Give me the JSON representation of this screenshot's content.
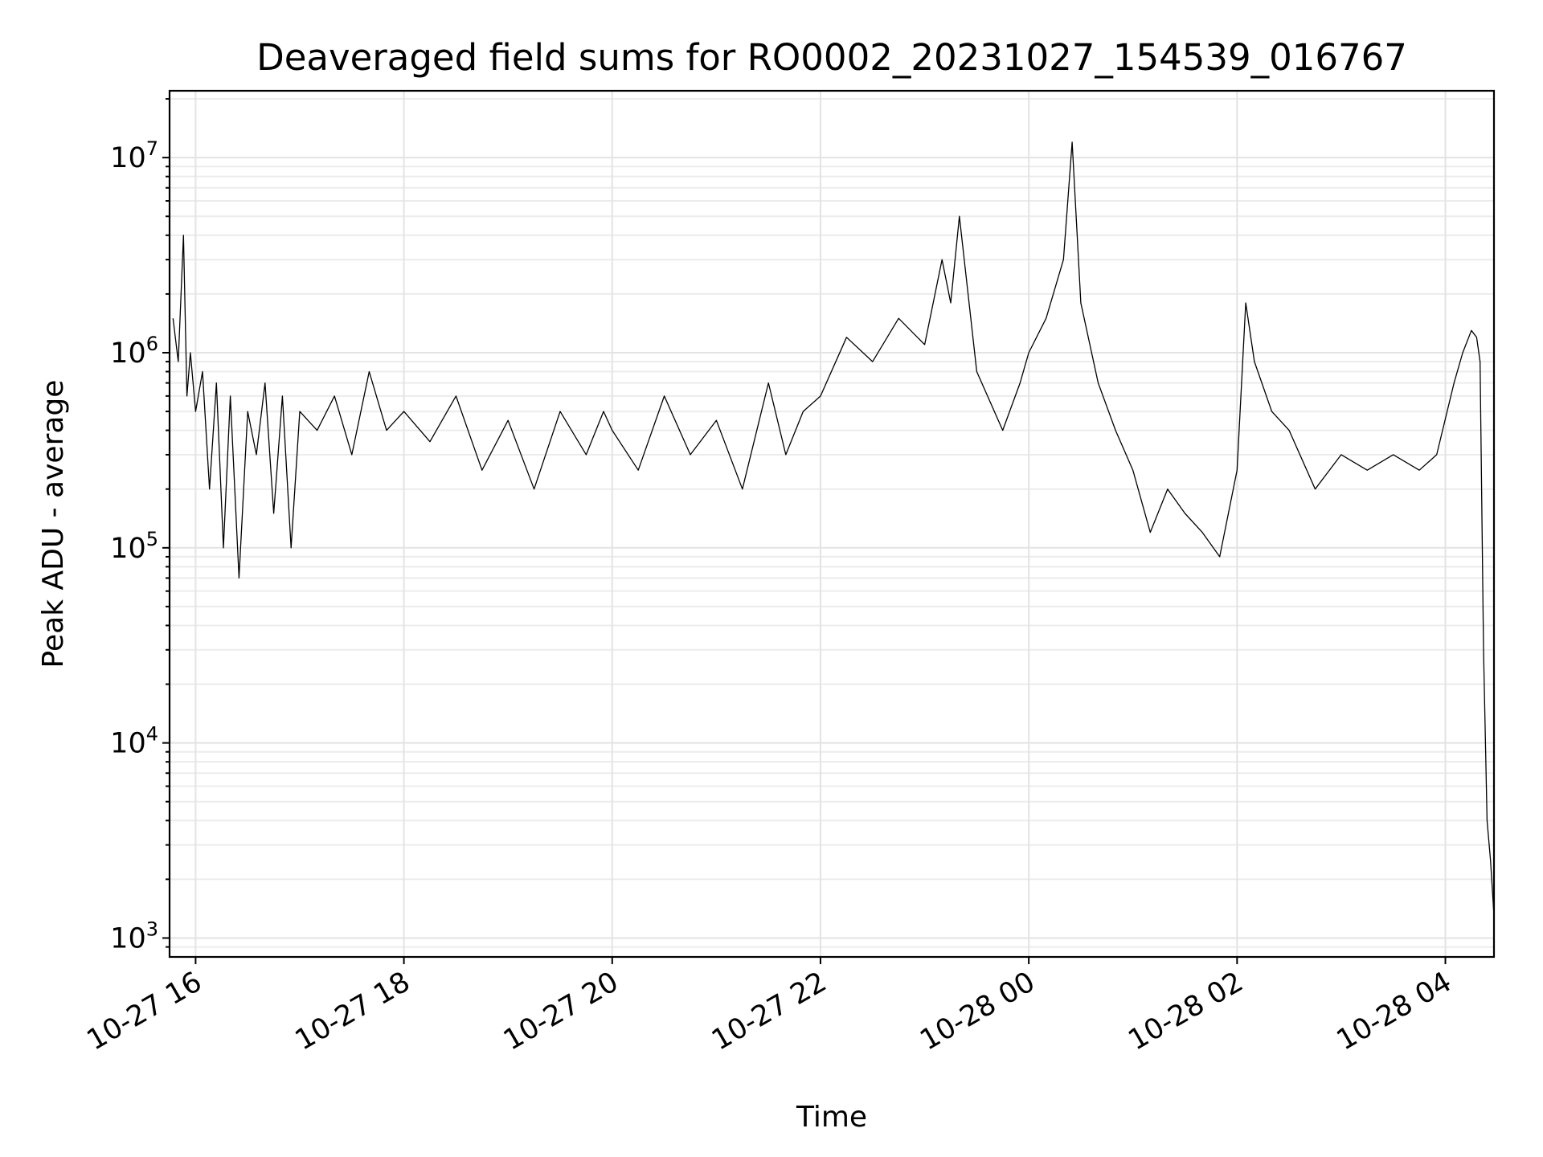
{
  "chart_data": {
    "type": "line",
    "title": "Deaveraged field sums for RO0002_20231027_154539_016767",
    "xlabel": "Time",
    "ylabel": "Peak ADU - average",
    "yscale": "log",
    "ylim": [
      800,
      22000000
    ],
    "xlim": [
      "2023-10-27 15:45",
      "2023-10-28 04:28"
    ],
    "grid": true,
    "x_ticks": [
      {
        "t": "2023-10-27 16:00",
        "label": "10-27 16"
      },
      {
        "t": "2023-10-27 18:00",
        "label": "10-27 18"
      },
      {
        "t": "2023-10-27 20:00",
        "label": "10-27 20"
      },
      {
        "t": "2023-10-27 22:00",
        "label": "10-27 22"
      },
      {
        "t": "2023-10-28 00:00",
        "label": "10-28 00"
      },
      {
        "t": "2023-10-28 02:00",
        "label": "10-28 02"
      },
      {
        "t": "2023-10-28 04:00",
        "label": "10-28 04"
      }
    ],
    "y_ticks": [
      {
        "value": 1000,
        "base": "10",
        "exp": "3"
      },
      {
        "value": 10000,
        "base": "10",
        "exp": "4"
      },
      {
        "value": 100000,
        "base": "10",
        "exp": "5"
      },
      {
        "value": 1000000,
        "base": "10",
        "exp": "6"
      },
      {
        "value": 10000000,
        "base": "10",
        "exp": "7"
      }
    ],
    "series": [
      {
        "color": "#000000",
        "x": [
          "2023-10-27 15:47",
          "2023-10-27 15:50",
          "2023-10-27 15:53",
          "2023-10-27 15:55",
          "2023-10-27 15:57",
          "2023-10-27 16:00",
          "2023-10-27 16:04",
          "2023-10-27 16:08",
          "2023-10-27 16:12",
          "2023-10-27 16:16",
          "2023-10-27 16:20",
          "2023-10-27 16:25",
          "2023-10-27 16:30",
          "2023-10-27 16:35",
          "2023-10-27 16:40",
          "2023-10-27 16:45",
          "2023-10-27 16:50",
          "2023-10-27 16:55",
          "2023-10-27 17:00",
          "2023-10-27 17:10",
          "2023-10-27 17:20",
          "2023-10-27 17:30",
          "2023-10-27 17:40",
          "2023-10-27 17:50",
          "2023-10-27 18:00",
          "2023-10-27 18:15",
          "2023-10-27 18:30",
          "2023-10-27 18:45",
          "2023-10-27 19:00",
          "2023-10-27 19:15",
          "2023-10-27 19:30",
          "2023-10-27 19:45",
          "2023-10-27 19:55",
          "2023-10-27 20:00",
          "2023-10-27 20:15",
          "2023-10-27 20:30",
          "2023-10-27 20:45",
          "2023-10-27 21:00",
          "2023-10-27 21:15",
          "2023-10-27 21:30",
          "2023-10-27 21:40",
          "2023-10-27 21:50",
          "2023-10-27 22:00",
          "2023-10-27 22:15",
          "2023-10-27 22:30",
          "2023-10-27 22:45",
          "2023-10-27 23:00",
          "2023-10-27 23:10",
          "2023-10-27 23:15",
          "2023-10-27 23:20",
          "2023-10-27 23:30",
          "2023-10-27 23:45",
          "2023-10-27 23:55",
          "2023-10-28 00:00",
          "2023-10-28 00:10",
          "2023-10-28 00:20",
          "2023-10-28 00:25",
          "2023-10-28 00:30",
          "2023-10-28 00:40",
          "2023-10-28 00:50",
          "2023-10-28 01:00",
          "2023-10-28 01:10",
          "2023-10-28 01:20",
          "2023-10-28 01:30",
          "2023-10-28 01:40",
          "2023-10-28 01:50",
          "2023-10-28 02:00",
          "2023-10-28 02:05",
          "2023-10-28 02:10",
          "2023-10-28 02:20",
          "2023-10-28 02:30",
          "2023-10-28 02:45",
          "2023-10-28 03:00",
          "2023-10-28 03:15",
          "2023-10-28 03:30",
          "2023-10-28 03:45",
          "2023-10-28 03:55",
          "2023-10-28 04:05",
          "2023-10-28 04:10",
          "2023-10-28 04:15",
          "2023-10-28 04:18",
          "2023-10-28 04:20",
          "2023-10-28 04:22",
          "2023-10-28 04:24",
          "2023-10-28 04:26",
          "2023-10-28 04:28"
        ],
        "y": [
          1500000,
          900000,
          4000000,
          600000,
          1000000,
          500000,
          800000,
          200000,
          700000,
          100000,
          600000,
          70000,
          500000,
          300000,
          700000,
          150000,
          600000,
          100000,
          500000,
          400000,
          600000,
          300000,
          800000,
          400000,
          500000,
          350000,
          600000,
          250000,
          450000,
          200000,
          500000,
          300000,
          500000,
          400000,
          250000,
          600000,
          300000,
          450000,
          200000,
          700000,
          300000,
          500000,
          600000,
          1200000,
          900000,
          1500000,
          1100000,
          3000000,
          1800000,
          5000000,
          800000,
          400000,
          700000,
          1000000,
          1500000,
          3000000,
          12000000,
          1800000,
          700000,
          400000,
          250000,
          120000,
          200000,
          150000,
          120000,
          90000,
          250000,
          1800000,
          900000,
          500000,
          400000,
          200000,
          300000,
          250000,
          300000,
          250000,
          300000,
          700000,
          1000000,
          1300000,
          1200000,
          900000,
          30000,
          4000,
          2500,
          1300
        ]
      }
    ]
  }
}
